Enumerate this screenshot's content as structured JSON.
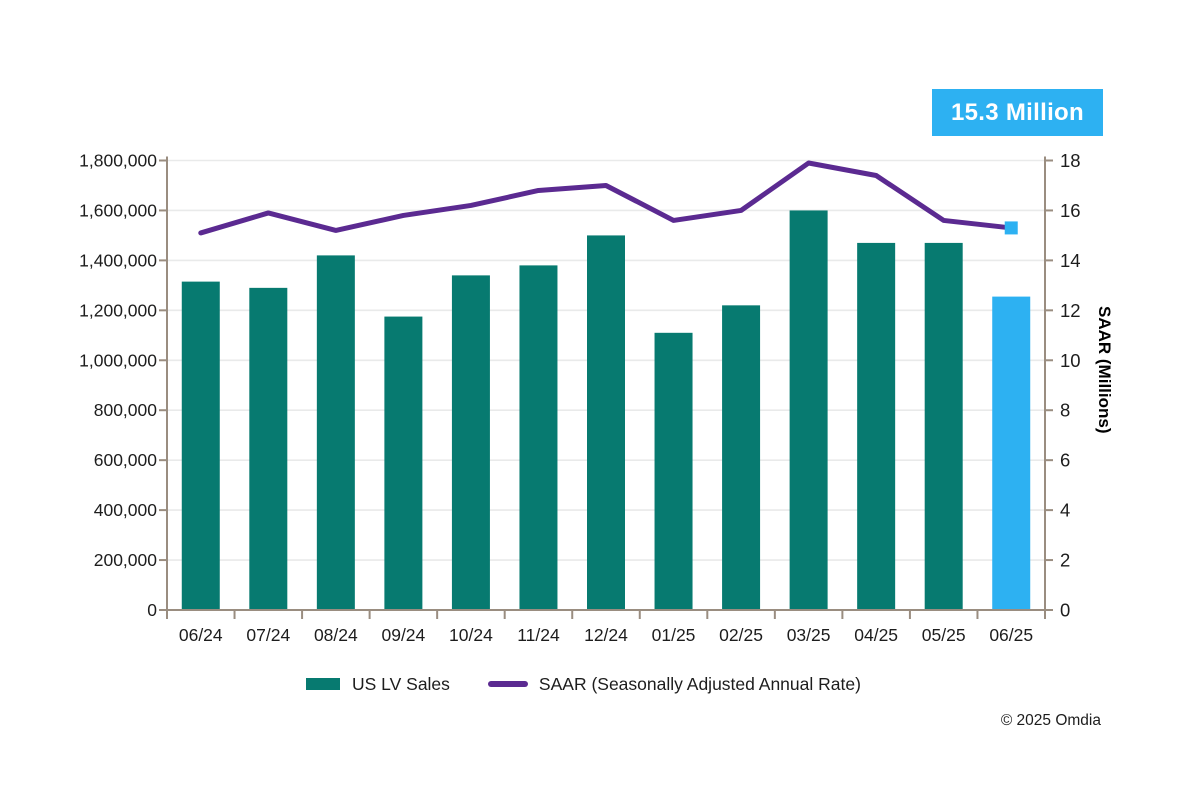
{
  "callout": {
    "label": "15.3 Million"
  },
  "legend": {
    "items": [
      {
        "label": "US LV Sales",
        "swatch": "bar"
      },
      {
        "label": "SAAR (Seasonally Adjusted Annual Rate)",
        "swatch": "line"
      }
    ]
  },
  "footer": {
    "copyright": "© 2025 Omdia"
  },
  "colors": {
    "bar_teal": "#077A70",
    "bar_highlight_blue": "#2DB1F2",
    "line_purple": "#5B2A91",
    "marker_blue": "#2DB1F2",
    "callout_bg": "#2DB1F2",
    "callout_text": "#ffffff",
    "axis_line": "#9A8D80",
    "gridline": "#E9EAEA",
    "tick_text": "#1d1d1d"
  },
  "chart_data": {
    "type": "bar+line combo",
    "categories": [
      "06/24",
      "07/24",
      "08/24",
      "09/24",
      "10/24",
      "11/24",
      "12/24",
      "01/25",
      "02/25",
      "03/25",
      "04/25",
      "05/25",
      "06/25"
    ],
    "series": [
      {
        "name": "US LV Sales",
        "type": "bar",
        "axis": "left",
        "values": [
          1315000,
          1290000,
          1420000,
          1175000,
          1340000,
          1380000,
          1500000,
          1110000,
          1220000,
          1600000,
          1470000,
          1470000,
          1255000
        ],
        "highlight_last_bar": true
      },
      {
        "name": "SAAR (Seasonally Adjusted Annual Rate)",
        "type": "line",
        "axis": "right",
        "values": [
          15.1,
          15.9,
          15.2,
          15.8,
          16.2,
          16.8,
          17.0,
          15.6,
          16.0,
          17.9,
          17.4,
          15.6,
          15.3
        ],
        "last_point_square_marker": true
      }
    ],
    "left_axis": {
      "min": 0,
      "max": 1800000,
      "tick_step": 200000,
      "tick_labels": [
        "0",
        "200,000",
        "400,000",
        "600,000",
        "800,000",
        "1,000,000",
        "1,200,000",
        "1,400,000",
        "1,600,000",
        "1,800,000"
      ]
    },
    "right_axis": {
      "min": 0,
      "max": 18,
      "tick_step": 2,
      "label": "SAAR (Millions)",
      "tick_labels": [
        "0",
        "2",
        "4",
        "6",
        "8",
        "10",
        "12",
        "14",
        "16",
        "18"
      ]
    },
    "annotation": {
      "text": "15.3 Million",
      "applies_to": "06/25 SAAR point"
    },
    "grid": true,
    "legend_position": "bottom"
  }
}
